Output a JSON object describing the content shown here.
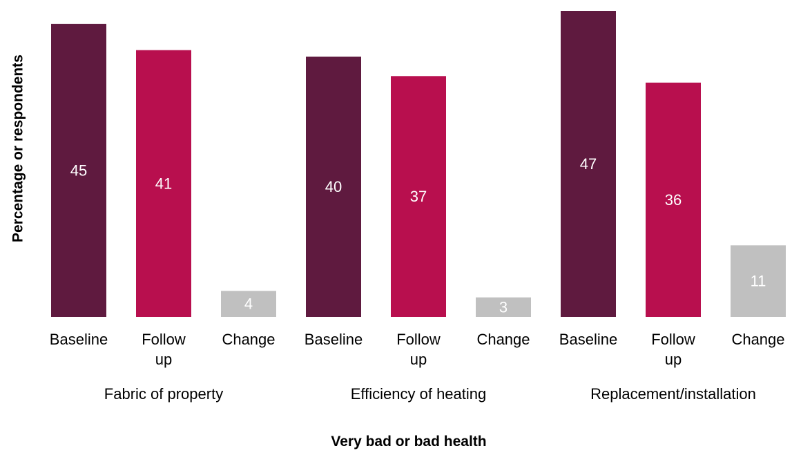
{
  "chart_data": {
    "type": "bar",
    "ylabel": "Percentage or respondents",
    "xlabel": "Very bad or bad health",
    "groups": [
      {
        "name": "Fabric of property",
        "bars": [
          {
            "category": "Baseline",
            "value": 45,
            "label": "45"
          },
          {
            "category": "Follow up",
            "value": 41,
            "label": "41"
          },
          {
            "category": "Change",
            "value": 4,
            "label": "4"
          }
        ]
      },
      {
        "name": "Efficiency of heating",
        "bars": [
          {
            "category": "Baseline",
            "value": 40,
            "label": "40"
          },
          {
            "category": "Follow up",
            "value": 37,
            "label": "37"
          },
          {
            "category": "Change",
            "value": 3,
            "label": "3"
          }
        ]
      },
      {
        "name": "Replacement/installation",
        "bars": [
          {
            "category": "Baseline",
            "value": 47,
            "label": "47"
          },
          {
            "category": "Follow up",
            "value": 36,
            "label": "36"
          },
          {
            "category": "Change",
            "value": 11,
            "label": "11"
          }
        ]
      }
    ],
    "colors": {
      "Baseline": "#5f1a3f",
      "Follow up": "#b80f4e",
      "Change": "#c0c0c0"
    },
    "ylim": [
      0,
      47
    ],
    "grid": false,
    "legend": "none"
  }
}
